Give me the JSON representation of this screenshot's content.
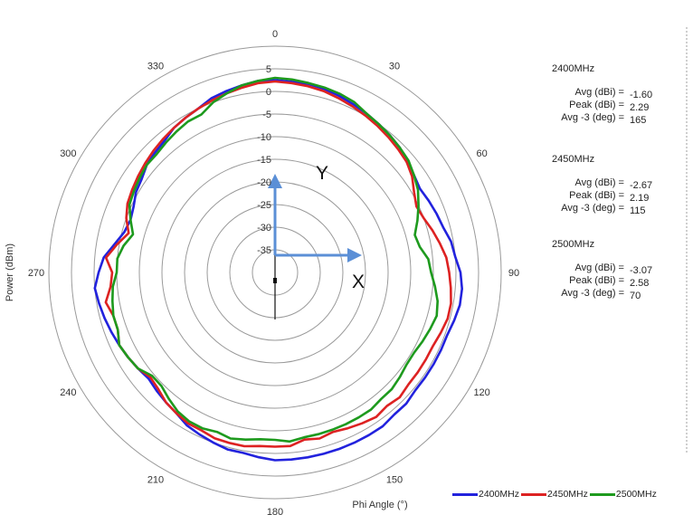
{
  "chart_data": {
    "type": "polar-line",
    "radial_axis": {
      "label": "Power (dBm)",
      "min": -40,
      "max": 10,
      "ticks": [
        5,
        0,
        -5,
        -10,
        -15,
        -20,
        -25,
        -30,
        -35
      ]
    },
    "angular_axis": {
      "label": "Phi Angle (°)",
      "ticks": [
        0,
        30,
        60,
        90,
        120,
        150,
        180,
        210,
        240,
        270,
        300,
        330
      ],
      "direction": "clockwise",
      "zero_at": "top"
    },
    "axes_overlay": {
      "y_label": "Y",
      "x_label": "X"
    },
    "angles": [
      0,
      5,
      10,
      15,
      20,
      25,
      30,
      35,
      40,
      45,
      50,
      55,
      60,
      65,
      70,
      75,
      80,
      85,
      90,
      95,
      100,
      105,
      110,
      115,
      120,
      125,
      130,
      135,
      140,
      145,
      150,
      155,
      160,
      165,
      170,
      175,
      180,
      185,
      190,
      195,
      200,
      205,
      210,
      215,
      220,
      225,
      230,
      235,
      240,
      245,
      250,
      255,
      260,
      265,
      270,
      275,
      280,
      285,
      290,
      295,
      300,
      305,
      310,
      315,
      320,
      325,
      330,
      335,
      340,
      345,
      350,
      355
    ],
    "series": [
      {
        "name": "2400MHz",
        "color": "#2222dd",
        "values": [
          2.5,
          2.3,
          2.3,
          2.0,
          1.5,
          1.0,
          0.5,
          0,
          -0.5,
          -1.0,
          -2.0,
          -2.5,
          -3.0,
          -2.5,
          -2.0,
          -1.5,
          -0.5,
          0,
          1.0,
          1.5,
          1.5,
          1.0,
          0.5,
          0.5,
          0.5,
          0.5,
          0.5,
          1.0,
          1.0,
          1.5,
          1.5,
          1.5,
          1.5,
          1.5,
          1.5,
          1.5,
          1.5,
          1.0,
          0.5,
          0.5,
          0.0,
          -0.5,
          -1.0,
          -2.0,
          -2.5,
          -3.0,
          -3.5,
          -3.0,
          -2.5,
          -2.0,
          -1.5,
          -1.0,
          -0.5,
          0.0,
          -1.0,
          -2.0,
          -4.0,
          -5.5,
          -6.0,
          -5.5,
          -4.5,
          -4.0,
          -3.0,
          -2.5,
          -2.0,
          -1.0,
          -0.5,
          0.0,
          1.0,
          1.5,
          2.0,
          2.5
        ]
      },
      {
        "name": "2450MHz",
        "color": "#dd2222",
        "values": [
          2.2,
          2.0,
          1.8,
          1.5,
          1.0,
          0.5,
          0,
          -0.5,
          -1.0,
          -1.5,
          -2.0,
          -3.0,
          -4.5,
          -5.5,
          -5.0,
          -4.0,
          -3.0,
          -2.0,
          -1.5,
          -1.0,
          -0.5,
          -0.5,
          -1.0,
          -1.5,
          -1.5,
          -1.5,
          -1.5,
          -1.0,
          -1.5,
          -1.0,
          -1.5,
          -2.0,
          -2.5,
          -2.0,
          -2.5,
          -1.5,
          -1.5,
          -1.5,
          -1.0,
          -1.0,
          -1.0,
          -1.5,
          -1.5,
          -2.0,
          -2.5,
          -3.5,
          -4.0,
          -3.0,
          -2.5,
          -2.0,
          -3.0,
          -3.0,
          -2.0,
          -3.5,
          -4.0,
          -2.5,
          -4.5,
          -6.5,
          -5.0,
          -4.0,
          -3.5,
          -3.0,
          -2.5,
          -2.0,
          -1.5,
          -1.0,
          -0.5,
          0.0,
          0.5,
          1.0,
          1.5,
          2.0
        ]
      },
      {
        "name": "2500MHz",
        "color": "#1e9a1e",
        "values": [
          3.0,
          2.8,
          2.5,
          2.3,
          2.0,
          1.5,
          0.5,
          0.0,
          -0.5,
          -1.0,
          -1.5,
          -2.5,
          -3.5,
          -5.0,
          -6.5,
          -8.0,
          -7.5,
          -6.0,
          -5.5,
          -4.5,
          -3.5,
          -3.0,
          -3.5,
          -4.0,
          -4.5,
          -4.5,
          -4.0,
          -3.5,
          -3.5,
          -3.0,
          -3.0,
          -3.0,
          -3.0,
          -3.0,
          -3.0,
          -2.5,
          -3.0,
          -3.0,
          -2.5,
          -2.0,
          -2.5,
          -2.0,
          -2.0,
          -2.5,
          -3.5,
          -4.5,
          -4.5,
          -3.0,
          -2.5,
          -2.0,
          -3.0,
          -3.0,
          -3.5,
          -4.0,
          -5.0,
          -5.0,
          -6.0,
          -7.5,
          -6.0,
          -4.5,
          -4.0,
          -3.5,
          -3.0,
          -3.0,
          -2.5,
          -2.0,
          -1.5,
          -1.5,
          0.0,
          1.0,
          2.0,
          2.5
        ]
      }
    ],
    "legend": {
      "placement": "bottom-right"
    }
  },
  "stats": [
    {
      "title": "2400MHz",
      "rows": [
        {
          "label": "Avg (dBi) =",
          "value": "-1.60"
        },
        {
          "label": "Peak (dBi) =",
          "value": "2.29"
        },
        {
          "label": "Avg -3 (deg) =",
          "value": "165"
        }
      ]
    },
    {
      "title": "2450MHz",
      "rows": [
        {
          "label": "Avg (dBi) =",
          "value": "-2.67"
        },
        {
          "label": "Peak (dBi) =",
          "value": "2.19"
        },
        {
          "label": "Avg -3 (deg) =",
          "value": "115"
        }
      ]
    },
    {
      "title": "2500MHz",
      "rows": [
        {
          "label": "Avg (dBi) =",
          "value": "-3.07"
        },
        {
          "label": "Peak (dBi) =",
          "value": "2.58"
        },
        {
          "label": "Avg -3 (deg) =",
          "value": "70"
        }
      ]
    }
  ]
}
